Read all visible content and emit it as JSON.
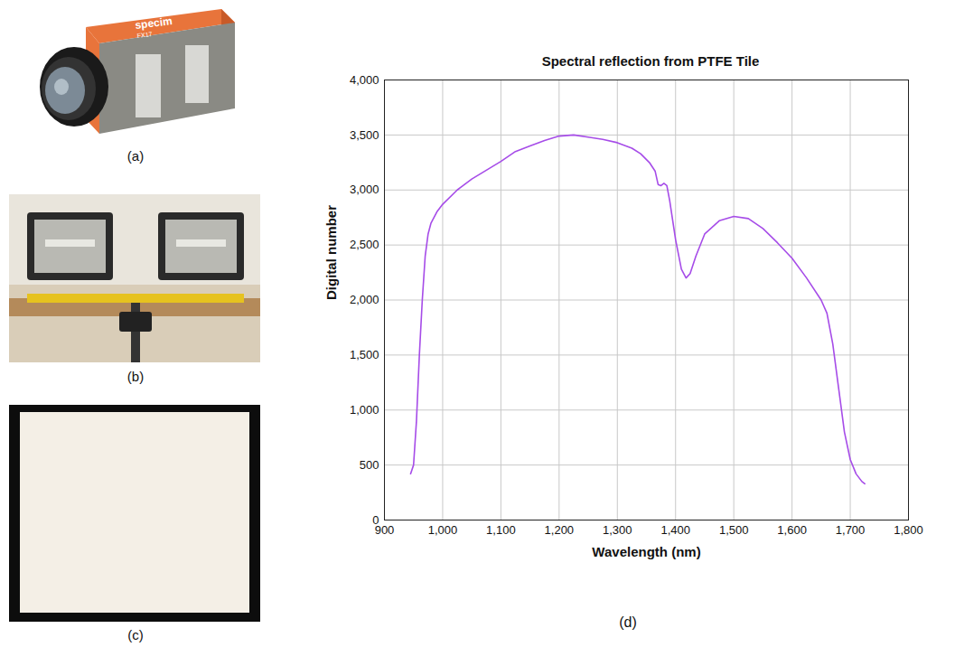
{
  "chart_data": {
    "type": "line",
    "title": "Spectral reflection from PTFE Tile",
    "x_label": "Wavelength (nm)",
    "y_label": "Digital number",
    "series": [
      {
        "name": "PTFE Tile",
        "color": "#a64ce8",
        "x": [
          945,
          950,
          955,
          960,
          965,
          970,
          975,
          980,
          990,
          1000,
          1025,
          1050,
          1075,
          1100,
          1125,
          1150,
          1175,
          1200,
          1225,
          1250,
          1275,
          1300,
          1325,
          1340,
          1355,
          1365,
          1370,
          1375,
          1380,
          1385,
          1390,
          1400,
          1410,
          1418,
          1425,
          1435,
          1450,
          1475,
          1500,
          1525,
          1550,
          1575,
          1600,
          1625,
          1650,
          1660,
          1670,
          1680,
          1690,
          1700,
          1710,
          1720,
          1725
        ],
        "values": [
          420,
          500,
          900,
          1500,
          2000,
          2400,
          2600,
          2700,
          2800,
          2870,
          3000,
          3100,
          3180,
          3260,
          3350,
          3400,
          3450,
          3490,
          3500,
          3480,
          3460,
          3430,
          3380,
          3330,
          3250,
          3170,
          3050,
          3040,
          3060,
          3040,
          2900,
          2550,
          2280,
          2200,
          2240,
          2400,
          2600,
          2720,
          2760,
          2740,
          2650,
          2520,
          2380,
          2200,
          2000,
          1880,
          1600,
          1200,
          800,
          550,
          420,
          350,
          330
        ]
      }
    ],
    "xlim": [
      900,
      1800
    ],
    "xticks": [
      900,
      1000,
      1100,
      1200,
      1300,
      1400,
      1500,
      1600,
      1700,
      1800
    ],
    "ylim": [
      0,
      4000
    ],
    "yticks": [
      0,
      500,
      1000,
      1500,
      2000,
      2500,
      3000,
      3500,
      4000
    ],
    "grid": true
  },
  "figure": {
    "panel_labels": [
      "(a)",
      "(b)",
      "(c)",
      "(d)"
    ],
    "camera_text": [
      "specim",
      "FX17"
    ]
  }
}
